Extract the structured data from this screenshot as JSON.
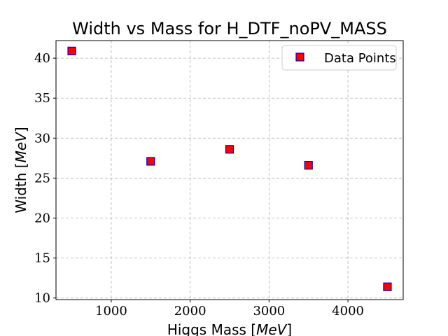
{
  "chart_data": {
    "type": "scatter",
    "title": "Width vs Mass for H_DTF_noPV_MASS",
    "xlabel": "Higgs Mass [MeV]",
    "xlabel_main": "Higgs Mass ",
    "xlabel_unit": "MeV",
    "ylabel": "Width [MeV]",
    "ylabel_main": "Width ",
    "ylabel_unit": "MeV",
    "xlim": [
      300,
      4700
    ],
    "ylim": [
      9.8,
      42.2
    ],
    "xticks": [
      1000,
      2000,
      3000,
      4000
    ],
    "yticks": [
      10,
      15,
      20,
      25,
      30,
      35,
      40
    ],
    "grid": true,
    "legend_position": "top-right",
    "series": [
      {
        "name": "Data Points",
        "marker": "square",
        "fill_color": "#ff0000",
        "edge_color": "#0000cc",
        "x": [
          500,
          1500,
          2500,
          3500,
          4500
        ],
        "y": [
          40.9,
          27.1,
          28.6,
          26.6,
          11.4
        ]
      }
    ]
  }
}
